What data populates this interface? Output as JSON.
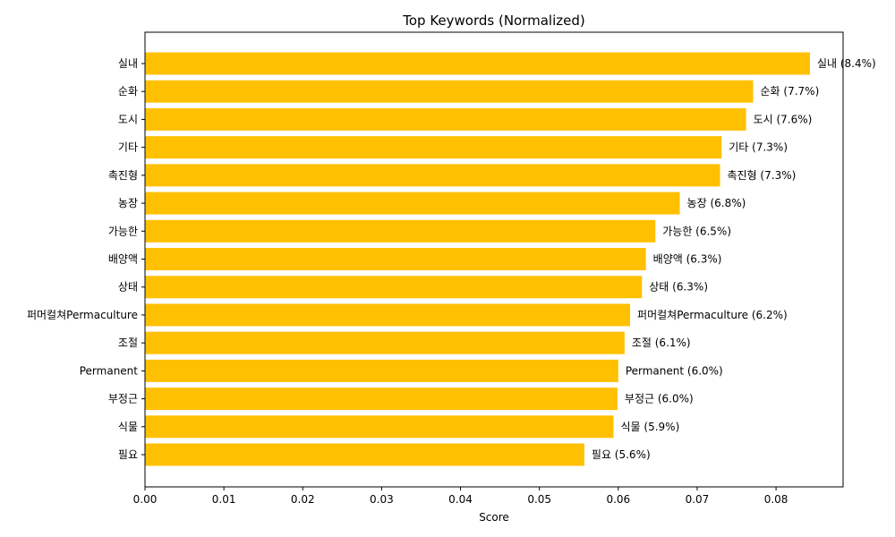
{
  "chart_data": {
    "type": "bar",
    "orientation": "horizontal",
    "title": "Top Keywords (Normalized)",
    "xlabel": "Score",
    "ylabel": "",
    "xlim": [
      0,
      0.0885
    ],
    "xticks": [
      "0.00",
      "0.01",
      "0.02",
      "0.03",
      "0.04",
      "0.05",
      "0.06",
      "0.07",
      "0.08"
    ],
    "grid": false,
    "bar_color": "#FFC000",
    "categories": [
      "실내",
      "순화",
      "도시",
      "기타",
      "촉진형",
      "농장",
      "가능한",
      "배양액",
      "상태",
      "퍼머컬쳐Permaculture",
      "조절",
      "Permanent",
      "부정근",
      "식물",
      "필요"
    ],
    "values": [
      0.0843,
      0.0771,
      0.0762,
      0.0731,
      0.0729,
      0.0678,
      0.0647,
      0.0635,
      0.063,
      0.0615,
      0.0608,
      0.06,
      0.0599,
      0.0594,
      0.0557
    ],
    "data_labels": [
      "실내 (8.4%)",
      "순화 (7.7%)",
      "도시 (7.6%)",
      "기타 (7.3%)",
      "촉진형 (7.3%)",
      "농장 (6.8%)",
      "가능한 (6.5%)",
      "배양액 (6.3%)",
      "상태 (6.3%)",
      "퍼머컬쳐Permaculture (6.2%)",
      "조절 (6.1%)",
      "Permanent (6.0%)",
      "부정근 (6.0%)",
      "식물 (5.9%)",
      "필요 (5.6%)"
    ]
  }
}
